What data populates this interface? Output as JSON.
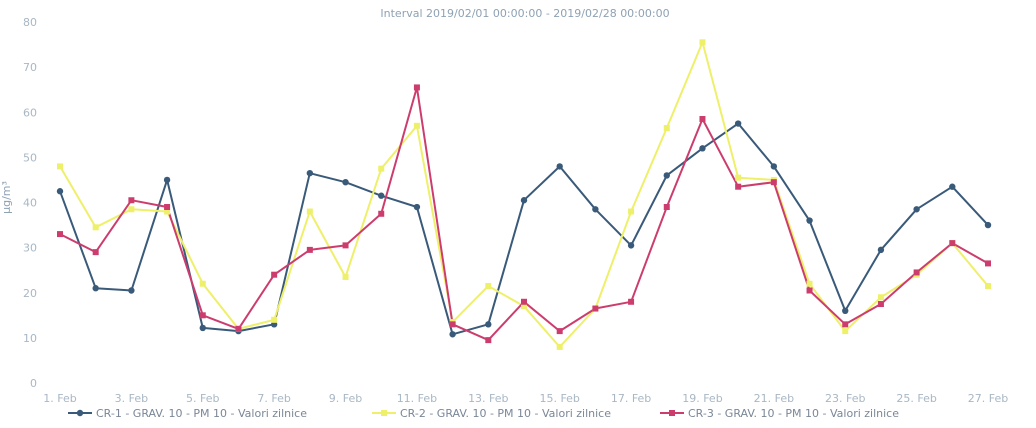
{
  "chart_data": {
    "type": "line",
    "title": "Interval 2019/02/01 00:00:00 - 2019/02/28 00:00:00",
    "ylabel": "µg/m³",
    "xlabel": "",
    "ylim": [
      0,
      80
    ],
    "yticks": [
      0,
      10,
      20,
      30,
      40,
      50,
      60,
      70,
      80
    ],
    "grid": false,
    "legend_position": "bottom",
    "categories": [
      "1. Feb",
      "2. Feb",
      "3. Feb",
      "4. Feb",
      "5. Feb",
      "6. Feb",
      "7. Feb",
      "8. Feb",
      "9. Feb",
      "10. Feb",
      "11. Feb",
      "12. Feb",
      "13. Feb",
      "14. Feb",
      "15. Feb",
      "16. Feb",
      "17. Feb",
      "18. Feb",
      "19. Feb",
      "20. Feb",
      "21. Feb",
      "22. Feb",
      "23. Feb",
      "24. Feb",
      "25. Feb",
      "26. Feb",
      "27. Feb"
    ],
    "x_tick_labels": [
      "1. Feb",
      "3. Feb",
      "5. Feb",
      "7. Feb",
      "9. Feb",
      "11. Feb",
      "13. Feb",
      "15. Feb",
      "17. Feb",
      "19. Feb",
      "21. Feb",
      "23. Feb",
      "25. Feb",
      "27. Feb"
    ],
    "series": [
      {
        "name": "CR-1 - GRAV. 10 - PM 10 - Valori zilnice",
        "color": "#3a5a7a",
        "marker": "circle",
        "values": [
          42.5,
          21,
          20.5,
          45,
          12.2,
          11.5,
          13,
          46.5,
          44.5,
          41.5,
          39,
          10.8,
          13,
          40.5,
          48,
          38.5,
          30.5,
          46,
          52,
          57.5,
          48,
          36,
          16,
          29.5,
          38.5,
          43.5,
          35
        ]
      },
      {
        "name": "CR-2 - GRAV. 10 - PM 10 - Valori zilnice",
        "color": "#eef06a",
        "marker": "square",
        "values": [
          48,
          34.5,
          38.5,
          38,
          22,
          12,
          14,
          38,
          23.5,
          47.5,
          57,
          13.5,
          21.5,
          17,
          8,
          16.5,
          38,
          56.5,
          75.5,
          45.5,
          45,
          22,
          11.5,
          19,
          24,
          31,
          21.5
        ]
      },
      {
        "name": "CR-3 - GRAV. 10 - PM 10 - Valori zilnice",
        "color": "#cc3d6e",
        "marker": "square",
        "values": [
          33,
          29,
          40.5,
          39,
          15,
          12,
          24,
          29.5,
          30.5,
          37.5,
          65.5,
          13,
          9.5,
          18,
          11.5,
          16.5,
          18,
          39,
          58.5,
          43.5,
          44.5,
          20.5,
          13,
          17.5,
          24.5,
          31,
          26.5
        ]
      }
    ]
  }
}
